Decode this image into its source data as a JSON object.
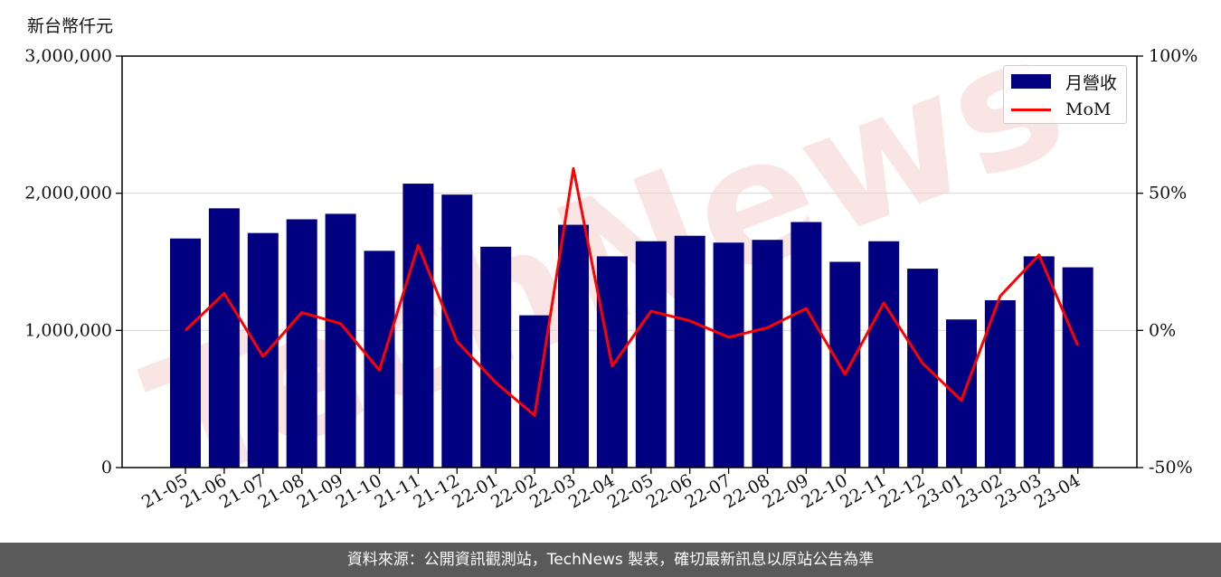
{
  "unit_label": "新台幣仟元",
  "footer_text": "資料來源：公開資訊觀測站，TechNews 製表，確切最新訊息以原站公告為準",
  "watermark_text": "TechNews",
  "colors": {
    "bar": "#000080",
    "line": "#ff0000",
    "grid": "#d9d9d9",
    "footer_bg": "#5a5a5a",
    "watermark": "#f7d0d0"
  },
  "chart_data": {
    "type": "bar",
    "categories": [
      "21-05",
      "21-06",
      "21-07",
      "21-08",
      "21-09",
      "21-10",
      "21-11",
      "21-12",
      "22-01",
      "22-02",
      "22-03",
      "22-04",
      "22-05",
      "22-06",
      "22-07",
      "22-08",
      "22-09",
      "22-10",
      "22-11",
      "22-12",
      "23-01",
      "23-02",
      "23-03",
      "23-04"
    ],
    "series": [
      {
        "name": "月營收",
        "type": "bar",
        "axis": "left",
        "values": [
          1670000,
          1890000,
          1710000,
          1810000,
          1850000,
          1580000,
          2070000,
          1990000,
          1610000,
          1110000,
          1770000,
          1540000,
          1650000,
          1690000,
          1640000,
          1660000,
          1790000,
          1500000,
          1650000,
          1450000,
          1080000,
          1220000,
          1540000,
          1460000
        ]
      },
      {
        "name": "MoM",
        "type": "line",
        "axis": "right",
        "values": [
          0,
          13.5,
          -9.5,
          6.5,
          2.5,
          -14.5,
          31,
          -4,
          -19,
          -31,
          59,
          -13,
          7,
          3.5,
          -2.5,
          1,
          8,
          -16,
          10,
          -12,
          -25.5,
          12.5,
          27.5,
          -5.5
        ]
      }
    ],
    "ylim_left": [
      0,
      3000000
    ],
    "yticks_left": [
      "0",
      "1,000,000",
      "2,000,000",
      "3,000,000"
    ],
    "ylim_right": [
      -50,
      100
    ],
    "yticks_right": [
      "-50%",
      "0%",
      "50%",
      "100%"
    ],
    "grid": "horizontal",
    "legend_position": "top-right"
  }
}
